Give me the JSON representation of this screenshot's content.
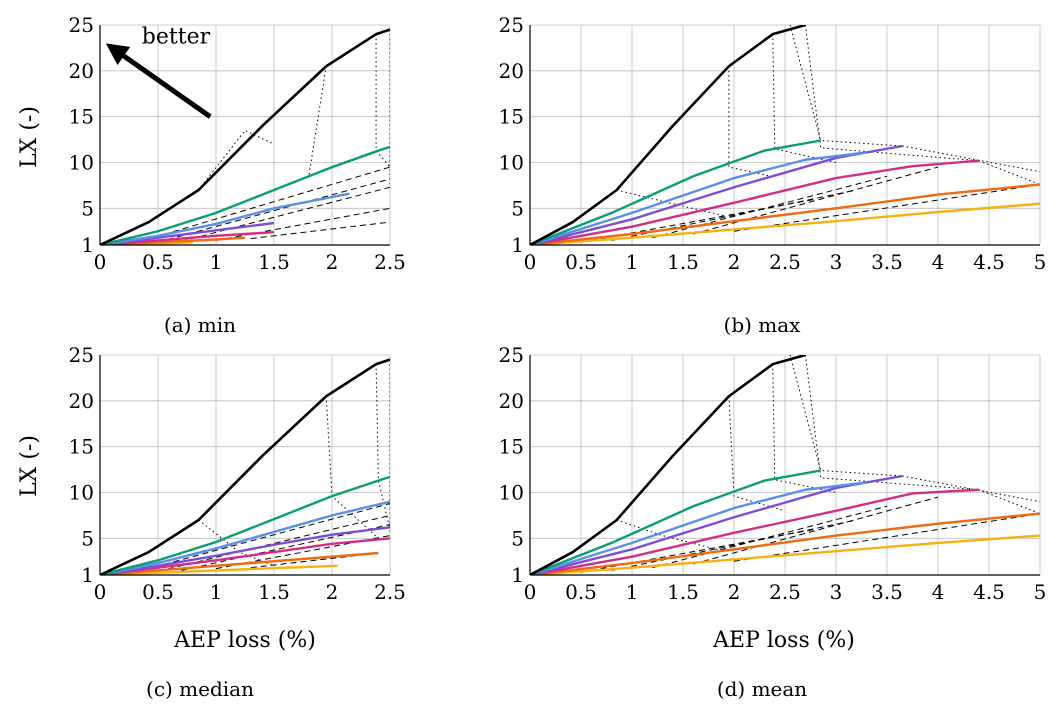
{
  "colors": {
    "black": "#000000",
    "green": "#0a9e73",
    "blue": "#5b8fe8",
    "purple": "#7a4fd6",
    "magenta": "#d02f86",
    "orange": "#ef6a10",
    "yellow": "#f5b011"
  },
  "chart_data": [
    {
      "type": "line",
      "caption": "(a) min",
      "ylabel": "LX (-)",
      "xlabel": "",
      "xlim": [
        0,
        2.5
      ],
      "ylim": [
        1,
        25
      ],
      "xticks": [
        "0",
        "0.5",
        "1",
        "1.5",
        "2",
        "2.5"
      ],
      "yticks": [
        "1",
        "5",
        "10",
        "15",
        "20",
        "25"
      ],
      "grid": true,
      "annotation": {
        "text": "better",
        "arrow_from": [
          0.95,
          15
        ],
        "arrow_to": [
          0.05,
          23
        ]
      },
      "series": [
        {
          "color": "black",
          "x": [
            0,
            0.42,
            0.85,
            1.4,
            1.95,
            2.38,
            2.5
          ],
          "y": [
            1,
            3.5,
            7,
            14,
            20.5,
            24,
            24.5
          ]
        },
        {
          "color": "green",
          "x": [
            0,
            0.5,
            1.0,
            1.5,
            2.0,
            2.4,
            2.5
          ],
          "y": [
            1,
            2.5,
            4.5,
            7,
            9.5,
            11.3,
            11.7
          ]
        },
        {
          "color": "blue",
          "x": [
            0,
            0.5,
            1.0,
            1.5,
            2.15
          ],
          "y": [
            1,
            2.0,
            3.3,
            5.0,
            6.6
          ]
        },
        {
          "color": "purple",
          "x": [
            0,
            0.5,
            1.0,
            1.5
          ],
          "y": [
            1,
            1.8,
            2.6,
            3.4
          ]
        },
        {
          "color": "magenta",
          "x": [
            0,
            0.5,
            1.0,
            1.5
          ],
          "y": [
            1,
            1.5,
            2.0,
            2.4
          ]
        },
        {
          "color": "orange",
          "x": [
            0,
            0.5,
            1.0,
            1.25
          ],
          "y": [
            1,
            1.3,
            1.6,
            1.8
          ]
        },
        {
          "color": "yellow",
          "x": [
            0,
            0.5,
            0.8
          ],
          "y": [
            1,
            1.15,
            1.3
          ]
        }
      ],
      "dotted": [
        [
          [
            0.85,
            7
          ],
          [
            1.25,
            13.5
          ],
          [
            1.5,
            12
          ]
        ],
        [
          [
            1.95,
            20.5
          ],
          [
            1.8,
            8.5
          ],
          [
            2.4,
            11.2
          ]
        ],
        [
          [
            2.38,
            24
          ],
          [
            2.38,
            11.3
          ],
          [
            2.5,
            9.5
          ]
        ],
        [
          [
            2.5,
            24.5
          ],
          [
            2.5,
            9
          ],
          [
            2.5,
            7.5
          ]
        ]
      ],
      "dashed": [
        [
          [
            0.3,
            1.2
          ],
          [
            2.5,
            9.5
          ]
        ],
        [
          [
            0.5,
            1.3
          ],
          [
            2.5,
            8.2
          ]
        ],
        [
          [
            0.7,
            1.4
          ],
          [
            2.5,
            7.3
          ]
        ],
        [
          [
            1.0,
            1.5
          ],
          [
            2.5,
            5.0
          ]
        ],
        [
          [
            1.3,
            1.7
          ],
          [
            2.5,
            3.5
          ]
        ]
      ]
    },
    {
      "type": "line",
      "caption": "(b) max",
      "ylabel": "",
      "xlabel": "",
      "xlim": [
        0,
        5
      ],
      "ylim": [
        1,
        25
      ],
      "xticks": [
        "0",
        "0.5",
        "1",
        "1.5",
        "2",
        "2.5",
        "3",
        "3.5",
        "4",
        "4.5",
        "5"
      ],
      "yticks": [
        "1",
        "5",
        "10",
        "15",
        "20",
        "25"
      ],
      "grid": true,
      "series": [
        {
          "color": "black",
          "x": [
            0,
            0.42,
            0.85,
            1.4,
            1.95,
            2.38,
            2.7
          ],
          "y": [
            1,
            3.5,
            7,
            14,
            20.5,
            24,
            25
          ]
        },
        {
          "color": "green",
          "x": [
            0,
            0.8,
            1.6,
            2.3,
            2.85
          ],
          "y": [
            1,
            4.5,
            8.5,
            11.3,
            12.4
          ]
        },
        {
          "color": "blue",
          "x": [
            0,
            1.0,
            2.0,
            2.7,
            3.3
          ],
          "y": [
            1,
            4.5,
            8.3,
            10.3,
            11.1
          ]
        },
        {
          "color": "purple",
          "x": [
            0,
            1.0,
            2.0,
            3.0,
            3.65
          ],
          "y": [
            1,
            3.8,
            7.3,
            10.5,
            11.8
          ]
        },
        {
          "color": "magenta",
          "x": [
            0,
            1.0,
            2.0,
            3.0,
            3.75,
            4.4
          ],
          "y": [
            1,
            3.0,
            5.6,
            8.3,
            9.6,
            10.2
          ]
        },
        {
          "color": "orange",
          "x": [
            0,
            1.0,
            2.0,
            3.0,
            4.0,
            5.0
          ],
          "y": [
            1,
            2.2,
            3.6,
            5.0,
            6.5,
            7.6
          ]
        },
        {
          "color": "yellow",
          "x": [
            0,
            1.0,
            2.0,
            3.0,
            4.0,
            5.0
          ],
          "y": [
            1,
            1.8,
            2.7,
            3.6,
            4.6,
            5.5
          ]
        }
      ],
      "dotted": [
        [
          [
            0.85,
            7
          ],
          [
            1.4,
            5.5
          ],
          [
            1.9,
            4.2
          ]
        ],
        [
          [
            1.95,
            20.5
          ],
          [
            1.95,
            9.5
          ],
          [
            2.4,
            8.4
          ]
        ],
        [
          [
            2.38,
            24
          ],
          [
            2.4,
            11.5
          ],
          [
            3.0,
            10.0
          ]
        ],
        [
          [
            2.55,
            25
          ],
          [
            2.85,
            12.4
          ],
          [
            3.65,
            11.8
          ]
        ],
        [
          [
            2.7,
            25
          ],
          [
            2.85,
            11.6
          ],
          [
            4.4,
            10.2
          ]
        ],
        [
          [
            3.65,
            11.8
          ],
          [
            5.0,
            9.0
          ]
        ],
        [
          [
            4.4,
            10.2
          ],
          [
            5.0,
            7.6
          ]
        ]
      ],
      "dashed": [
        [
          [
            0.5,
            1.3
          ],
          [
            2.8,
            6.0
          ]
        ],
        [
          [
            0.8,
            1.5
          ],
          [
            3.2,
            7.0
          ]
        ],
        [
          [
            1.2,
            1.8
          ],
          [
            3.5,
            8.5
          ]
        ],
        [
          [
            1.6,
            2.2
          ],
          [
            4.0,
            9.5
          ]
        ],
        [
          [
            2.0,
            2.5
          ],
          [
            5.0,
            7.6
          ]
        ]
      ]
    },
    {
      "type": "line",
      "caption": "(c) median",
      "ylabel": "LX (-)",
      "xlabel": "AEP loss (%)",
      "xlim": [
        0,
        2.5
      ],
      "ylim": [
        1,
        25
      ],
      "xticks": [
        "0",
        "0.5",
        "1",
        "1.5",
        "2",
        "2.5"
      ],
      "yticks": [
        "1",
        "5",
        "10",
        "15",
        "20",
        "25"
      ],
      "grid": true,
      "series": [
        {
          "color": "black",
          "x": [
            0,
            0.42,
            0.85,
            1.4,
            1.95,
            2.38,
            2.5
          ],
          "y": [
            1,
            3.5,
            7,
            14,
            20.5,
            24,
            24.5
          ]
        },
        {
          "color": "green",
          "x": [
            0,
            0.5,
            1.0,
            1.5,
            2.0,
            2.4,
            2.5
          ],
          "y": [
            1,
            2.6,
            4.6,
            7.1,
            9.6,
            11.3,
            11.7
          ]
        },
        {
          "color": "blue",
          "x": [
            0,
            0.5,
            1.0,
            1.5,
            2.0,
            2.5
          ],
          "y": [
            1,
            2.3,
            3.9,
            5.7,
            7.5,
            9.0
          ]
        },
        {
          "color": "purple",
          "x": [
            0,
            0.5,
            1.0,
            1.5,
            2.0,
            2.5
          ],
          "y": [
            1,
            2.0,
            3.1,
            4.3,
            5.4,
            6.2
          ]
        },
        {
          "color": "magenta",
          "x": [
            0,
            0.5,
            1.0,
            1.5,
            2.0,
            2.5
          ],
          "y": [
            1,
            1.8,
            2.6,
            3.5,
            4.4,
            5.0
          ]
        },
        {
          "color": "orange",
          "x": [
            0,
            0.5,
            1.0,
            1.5,
            2.0,
            2.4
          ],
          "y": [
            1,
            1.5,
            2.0,
            2.5,
            3.0,
            3.4
          ]
        },
        {
          "color": "yellow",
          "x": [
            0,
            0.5,
            1.0,
            1.5,
            2.05
          ],
          "y": [
            1,
            1.25,
            1.5,
            1.75,
            2.0
          ]
        }
      ],
      "dotted": [
        [
          [
            0.85,
            7
          ],
          [
            1.2,
            3.5
          ],
          [
            1.5,
            2.0
          ]
        ],
        [
          [
            1.95,
            20.5
          ],
          [
            2.0,
            9.6
          ],
          [
            2.4,
            5.0
          ]
        ],
        [
          [
            2.38,
            24
          ],
          [
            2.4,
            11.3
          ],
          [
            2.5,
            6.0
          ]
        ],
        [
          [
            2.5,
            24.5
          ],
          [
            2.5,
            9.0
          ],
          [
            2.5,
            5.0
          ]
        ]
      ],
      "dashed": [
        [
          [
            0.3,
            1.3
          ],
          [
            2.5,
            8.8
          ]
        ],
        [
          [
            0.5,
            1.4
          ],
          [
            2.5,
            7.5
          ]
        ],
        [
          [
            0.7,
            1.5
          ],
          [
            2.5,
            6.5
          ]
        ],
        [
          [
            1.0,
            1.7
          ],
          [
            2.5,
            5.3
          ]
        ],
        [
          [
            1.3,
            1.8
          ],
          [
            2.4,
            3.4
          ]
        ]
      ]
    },
    {
      "type": "line",
      "caption": "(d) mean",
      "ylabel": "",
      "xlabel": "AEP loss (%)",
      "xlim": [
        0,
        5
      ],
      "ylim": [
        1,
        25
      ],
      "xticks": [
        "0",
        "0.5",
        "1",
        "1.5",
        "2",
        "2.5",
        "3",
        "3.5",
        "4",
        "4.5",
        "5"
      ],
      "yticks": [
        "1",
        "5",
        "10",
        "15",
        "20",
        "25"
      ],
      "grid": true,
      "series": [
        {
          "color": "black",
          "x": [
            0,
            0.42,
            0.85,
            1.4,
            1.95,
            2.38,
            2.7
          ],
          "y": [
            1,
            3.5,
            7,
            14,
            20.5,
            24,
            25
          ]
        },
        {
          "color": "green",
          "x": [
            0,
            0.8,
            1.6,
            2.3,
            2.85
          ],
          "y": [
            1,
            4.5,
            8.5,
            11.3,
            12.4
          ]
        },
        {
          "color": "blue",
          "x": [
            0,
            1.0,
            2.0,
            2.7,
            3.3
          ],
          "y": [
            1,
            4.5,
            8.3,
            10.3,
            11.1
          ]
        },
        {
          "color": "purple",
          "x": [
            0,
            1.0,
            2.0,
            3.0,
            3.65
          ],
          "y": [
            1,
            3.8,
            7.3,
            10.5,
            11.8
          ]
        },
        {
          "color": "magenta",
          "x": [
            0,
            1.0,
            2.0,
            3.0,
            3.75,
            4.4
          ],
          "y": [
            1,
            3.0,
            5.6,
            8.0,
            9.9,
            10.3
          ]
        },
        {
          "color": "orange",
          "x": [
            0,
            1.0,
            2.0,
            3.0,
            4.0,
            5.0
          ],
          "y": [
            1,
            2.3,
            3.8,
            5.3,
            6.6,
            7.7
          ]
        },
        {
          "color": "yellow",
          "x": [
            0,
            1.0,
            2.0,
            3.0,
            4.0,
            5.0
          ],
          "y": [
            1,
            1.8,
            2.7,
            3.6,
            4.5,
            5.3
          ]
        }
      ],
      "dotted": [
        [
          [
            0.85,
            7
          ],
          [
            1.3,
            5.3
          ],
          [
            1.9,
            3.6
          ]
        ],
        [
          [
            1.95,
            20.5
          ],
          [
            2.0,
            9.6
          ],
          [
            2.5,
            8.0
          ]
        ],
        [
          [
            2.38,
            24
          ],
          [
            2.4,
            11.4
          ],
          [
            3.0,
            10.0
          ]
        ],
        [
          [
            2.55,
            25
          ],
          [
            2.85,
            12.4
          ],
          [
            3.65,
            11.8
          ]
        ],
        [
          [
            2.7,
            25
          ],
          [
            2.85,
            11.6
          ],
          [
            4.4,
            10.3
          ]
        ],
        [
          [
            3.65,
            11.8
          ],
          [
            5.0,
            9.0
          ]
        ],
        [
          [
            4.4,
            10.3
          ],
          [
            5.0,
            7.7
          ]
        ]
      ],
      "dashed": [
        [
          [
            0.5,
            1.3
          ],
          [
            2.8,
            6.0
          ]
        ],
        [
          [
            0.8,
            1.5
          ],
          [
            3.2,
            7.0
          ]
        ],
        [
          [
            1.2,
            1.8
          ],
          [
            3.5,
            8.5
          ]
        ],
        [
          [
            1.6,
            2.2
          ],
          [
            4.0,
            9.5
          ]
        ],
        [
          [
            2.0,
            2.5
          ],
          [
            5.0,
            7.7
          ]
        ]
      ]
    }
  ]
}
